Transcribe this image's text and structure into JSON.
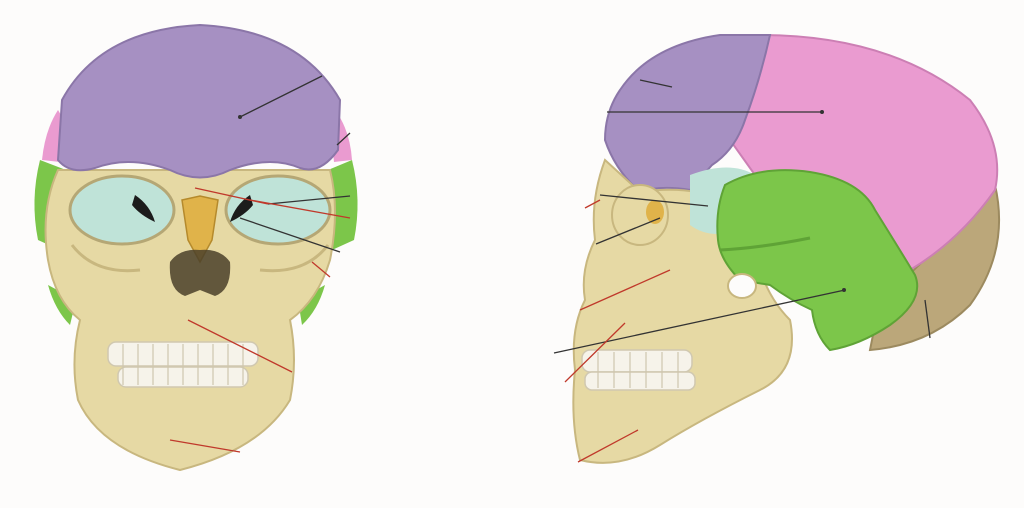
{
  "figure": {
    "views": [
      {
        "id": "anterior",
        "description_visible_text": ""
      },
      {
        "id": "lateral",
        "description_visible_text": ""
      }
    ],
    "colors": {
      "background": "#fdfcfb",
      "bone": "#e6d9a4",
      "bone_shadow": "#c8b77f",
      "frontal": "#a690c2",
      "parietal": "#ea9bd0",
      "temporal": "#7cc64a",
      "sphenoid": "#7bc24a",
      "orbit_fill": "#bfe3d8",
      "nasal": "#e0b34a",
      "occipital": "#bba77a",
      "teeth": "#f6f3ea",
      "leader_black": "#333333",
      "leader_red": "#c0392b"
    },
    "leader_lines": {
      "anterior_count": 9,
      "lateral_count": 10
    }
  }
}
